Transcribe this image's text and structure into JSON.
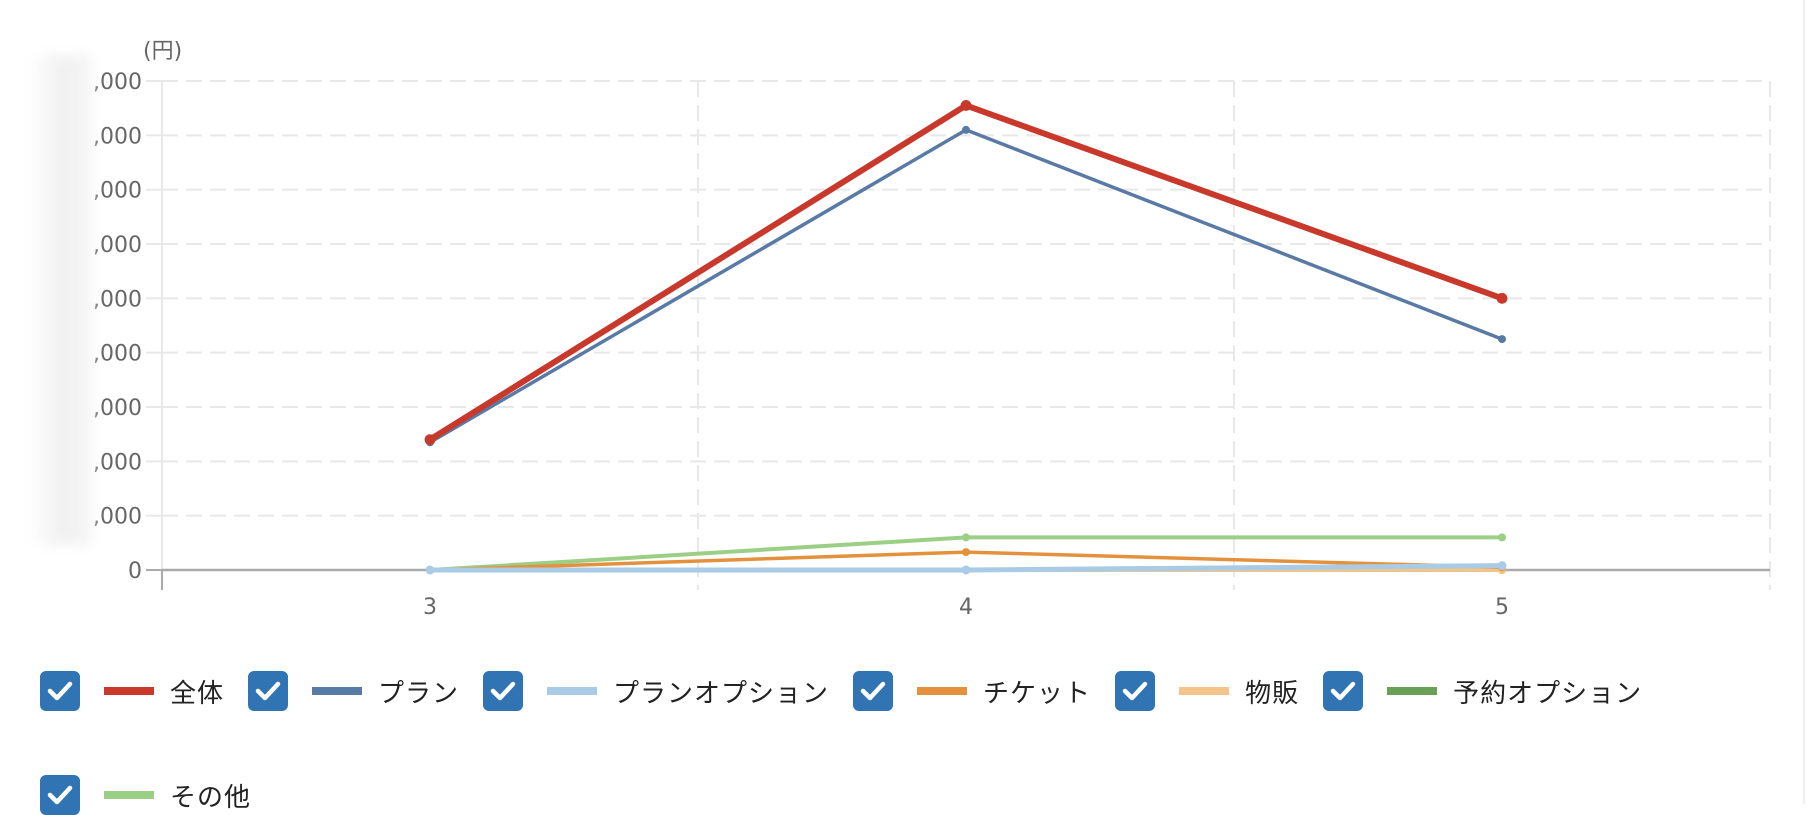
{
  "chart_data": {
    "type": "line",
    "title": "",
    "unit_label": "(円)",
    "xlabel": "",
    "ylabel": "(円)",
    "categories": [
      "3",
      "4",
      "5"
    ],
    "y_tick_labels": [
      "0",
      ",000",
      ",000",
      ",000",
      ",000",
      ",000",
      ",000",
      ",000",
      ",000",
      ",000"
    ],
    "y_tick_note": "leading digits of tick labels are blurred/redacted; values below are in gridline-step units",
    "ylim": [
      0,
      9
    ],
    "grid": true,
    "legend_position": "bottom",
    "series": [
      {
        "name": "全体",
        "color": "#c8392b",
        "width": 6,
        "values": [
          2.4,
          8.55,
          5.0
        ]
      },
      {
        "name": "プラン",
        "color": "#5a7aa6",
        "width": 3.5,
        "values": [
          2.35,
          8.1,
          4.25
        ]
      },
      {
        "name": "プランオプション",
        "color": "#a9cbe6",
        "width": 5,
        "values": [
          0,
          0,
          0.08
        ]
      },
      {
        "name": "チケット",
        "color": "#e4913e",
        "width": 3.5,
        "values": [
          0,
          0.33,
          0.05
        ]
      },
      {
        "name": "物販",
        "color": "#f5c48a",
        "width": 3.5,
        "values": [
          0,
          0,
          0
        ]
      },
      {
        "name": "予約オプション",
        "color": "#6a9f58",
        "width": 3.5,
        "values": [
          0,
          0,
          0
        ]
      },
      {
        "name": "その他",
        "color": "#9ccf86",
        "width": 4,
        "values": [
          0,
          0.6,
          0.6
        ]
      }
    ]
  },
  "legend": {
    "items": [
      {
        "label": "全体",
        "checked": true,
        "color": "#c8392b"
      },
      {
        "label": "プラン",
        "checked": true,
        "color": "#5a7aa6"
      },
      {
        "label": "プランオプション",
        "checked": true,
        "color": "#a9cbe6"
      },
      {
        "label": "チケット",
        "checked": true,
        "color": "#e4913e"
      },
      {
        "label": "物販",
        "checked": true,
        "color": "#f5c48a"
      },
      {
        "label": "予約オプション",
        "checked": true,
        "color": "#6a9f58"
      },
      {
        "label": "その他",
        "checked": true,
        "color": "#9ccf86"
      }
    ]
  },
  "colors": {
    "checkbox": "#3174b3",
    "grid": "#e8e8e8",
    "axis": "#aaaaaa",
    "tick_text": "#666666"
  }
}
